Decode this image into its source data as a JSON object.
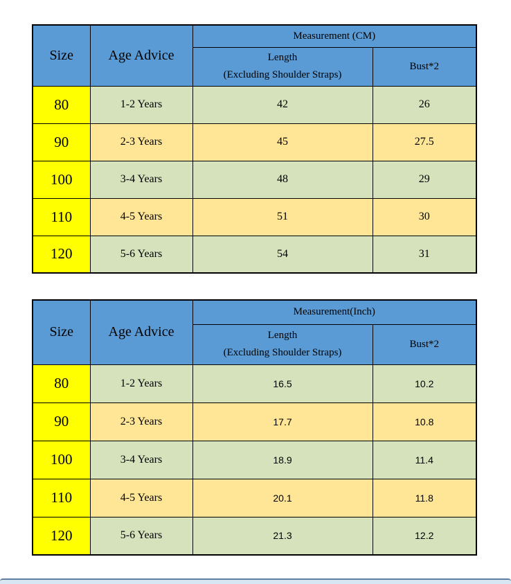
{
  "colors": {
    "header_blue": "#5B9BD5",
    "row_green": "#D5E2BC",
    "row_tan": "#FFE596",
    "size_yellow": "#FFFF00",
    "border": "#000000",
    "bottom_bar_fill": "#D8E6F3",
    "bottom_bar_border": "#5F7D9C"
  },
  "tables": [
    {
      "id": "cm",
      "size_header": "Size",
      "age_header": "Age Advice",
      "group_header": "Measurement (CM)",
      "length_header_line1": "Length",
      "length_header_line2": "(Excluding Shoulder Straps)",
      "bust_header": "Bust*2",
      "rows": [
        {
          "size": "80",
          "age": "1-2 Years",
          "length": "42",
          "bust": "26"
        },
        {
          "size": "90",
          "age": "2-3 Years",
          "length": "45",
          "bust": "27.5"
        },
        {
          "size": "100",
          "age": "3-4 Years",
          "length": "48",
          "bust": "29"
        },
        {
          "size": "110",
          "age": "4-5 Years",
          "length": "51",
          "bust": "30"
        },
        {
          "size": "120",
          "age": "5-6 Years",
          "length": "54",
          "bust": "31"
        }
      ]
    },
    {
      "id": "inch",
      "size_header": "Size",
      "age_header": "Age Advice",
      "group_header": "Measurement(Inch)",
      "length_header_line1": "Length",
      "length_header_line2": "(Excluding Shoulder Straps)",
      "bust_header": "Bust*2",
      "rows": [
        {
          "size": "80",
          "age": "1-2 Years",
          "length": "16.5",
          "bust": "10.2"
        },
        {
          "size": "90",
          "age": "2-3 Years",
          "length": "17.7",
          "bust": "10.8"
        },
        {
          "size": "100",
          "age": "3-4 Years",
          "length": "18.9",
          "bust": "11.4"
        },
        {
          "size": "110",
          "age": "4-5 Years",
          "length": "20.1",
          "bust": "11.8"
        },
        {
          "size": "120",
          "age": "5-6 Years",
          "length": "21.3",
          "bust": "12.2"
        }
      ]
    }
  ]
}
